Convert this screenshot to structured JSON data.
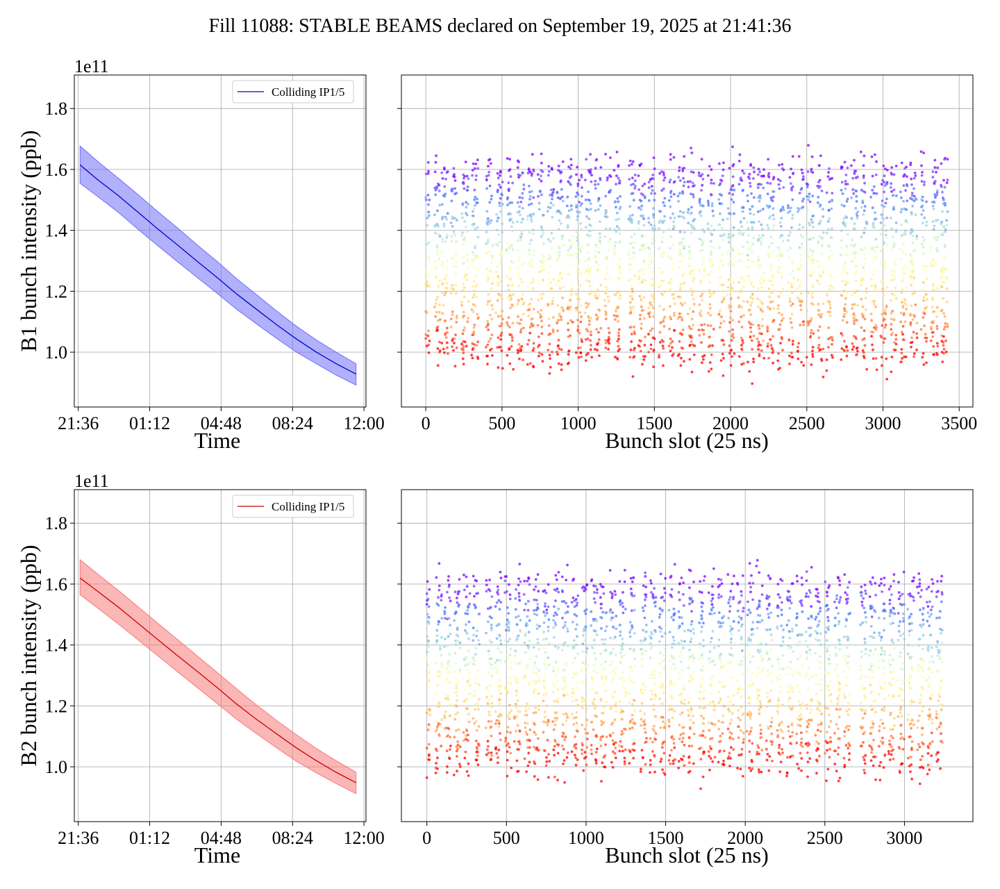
{
  "figure_title": "Fill 11088: STABLE BEAMS declared on September 19, 2025 at 21:41:36",
  "colors": {
    "b1_line": "#0000cc",
    "b1_band": "#6f6ff7",
    "b2_line": "#cc0000",
    "b2_band": "#f77a7a",
    "grid": "#b0b0b0",
    "colormap": "rainbow"
  },
  "chart_data": [
    {
      "id": "b1_time",
      "type": "line",
      "title": "",
      "xlabel": "Time",
      "ylabel": "B1 bunch intensity (ppb)",
      "offset_label": "1e11",
      "x_ticks": [
        "21:36",
        "01:12",
        "04:48",
        "08:24",
        "12:00"
      ],
      "xlim_hours": [
        -0.2,
        14.5
      ],
      "ylim": [
        0.82,
        1.91
      ],
      "y_ticks": [
        "1.0",
        "1.2",
        "1.4",
        "1.6",
        "1.8"
      ],
      "legend": {
        "entries": [
          "Colliding IP1/5"
        ],
        "placement": "top-right"
      },
      "grid": true,
      "series": [
        {
          "name": "Colliding IP1/5",
          "x_hours": [
            0.09,
            1,
            2,
            3,
            4,
            5,
            6,
            7,
            8,
            9,
            10,
            11,
            12,
            13,
            14.0
          ],
          "mean": [
            1.615,
            1.565,
            1.515,
            1.46,
            1.405,
            1.352,
            1.298,
            1.245,
            1.19,
            1.14,
            1.09,
            1.043,
            1.0,
            0.962,
            0.928
          ],
          "upper": [
            1.677,
            1.625,
            1.572,
            1.518,
            1.462,
            1.408,
            1.352,
            1.298,
            1.24,
            1.188,
            1.135,
            1.085,
            1.04,
            1.0,
            0.962
          ],
          "lower": [
            1.555,
            1.51,
            1.46,
            1.404,
            1.35,
            1.297,
            1.245,
            1.193,
            1.14,
            1.092,
            1.045,
            1.0,
            0.962,
            0.925,
            0.892
          ]
        }
      ]
    },
    {
      "id": "b1_slots",
      "type": "scatter",
      "title": "",
      "xlabel": "Bunch slot (25 ns)",
      "ylabel": "",
      "xlim": [
        -160,
        3590
      ],
      "ylim": [
        0.82,
        1.91
      ],
      "x_ticks": [
        0,
        500,
        1000,
        1500,
        2000,
        2500,
        3000,
        3500
      ],
      "grid": true,
      "color_by": "time (rainbow: early = violet, late = red)",
      "trains": [
        [
          0,
          25
        ],
        [
          58,
          95
        ],
        [
          105,
          145
        ],
        [
          165,
          205
        ],
        [
          235,
          280
        ],
        [
          300,
          345
        ],
        [
          395,
          440
        ],
        [
          460,
          505
        ],
        [
          530,
          575
        ],
        [
          600,
          645
        ],
        [
          665,
          710
        ],
        [
          735,
          775
        ],
        [
          800,
          840
        ],
        [
          860,
          905
        ],
        [
          925,
          965
        ],
        [
          985,
          1030
        ],
        [
          1045,
          1090
        ],
        [
          1110,
          1150
        ],
        [
          1175,
          1215
        ],
        [
          1235,
          1280
        ],
        [
          1330,
          1375
        ],
        [
          1395,
          1440
        ],
        [
          1460,
          1505
        ],
        [
          1530,
          1570
        ],
        [
          1595,
          1635
        ],
        [
          1655,
          1700
        ],
        [
          1720,
          1765
        ],
        [
          1790,
          1830
        ],
        [
          1850,
          1890
        ],
        [
          1920,
          1960
        ],
        [
          1980,
          2025
        ],
        [
          2050,
          2090
        ],
        [
          2110,
          2155
        ],
        [
          2175,
          2220
        ],
        [
          2240,
          2285
        ],
        [
          2310,
          2350
        ],
        [
          2375,
          2415
        ],
        [
          2440,
          2480
        ],
        [
          2500,
          2545
        ],
        [
          2570,
          2610
        ],
        [
          2630,
          2670
        ],
        [
          2725,
          2770
        ],
        [
          2790,
          2835
        ],
        [
          2855,
          2895
        ],
        [
          2920,
          2960
        ],
        [
          2985,
          3030
        ],
        [
          3050,
          3090
        ],
        [
          3115,
          3160
        ],
        [
          3180,
          3225
        ],
        [
          3250,
          3290
        ],
        [
          3315,
          3360
        ],
        [
          3380,
          3425
        ]
      ],
      "intensity_start": 1.6,
      "intensity_end": 0.99,
      "intensity_spread": 0.05
    },
    {
      "id": "b2_time",
      "type": "line",
      "title": "",
      "xlabel": "Time",
      "ylabel": "B2 bunch intensity (ppb)",
      "offset_label": "1e11",
      "x_ticks": [
        "21:36",
        "01:12",
        "04:48",
        "08:24",
        "12:00"
      ],
      "xlim_hours": [
        -0.2,
        14.5
      ],
      "ylim": [
        0.82,
        1.91
      ],
      "y_ticks": [
        "1.0",
        "1.2",
        "1.4",
        "1.6",
        "1.8"
      ],
      "legend": {
        "entries": [
          "Colliding IP1/5"
        ],
        "placement": "top-right"
      },
      "grid": true,
      "series": [
        {
          "name": "Colliding IP1/5",
          "x_hours": [
            0.09,
            1,
            2,
            3,
            4,
            5,
            6,
            7,
            8,
            9,
            10,
            11,
            12,
            13,
            14.0
          ],
          "mean": [
            1.62,
            1.575,
            1.525,
            1.472,
            1.418,
            1.365,
            1.313,
            1.26,
            1.205,
            1.155,
            1.108,
            1.062,
            1.02,
            0.982,
            0.948
          ],
          "upper": [
            1.68,
            1.632,
            1.58,
            1.526,
            1.472,
            1.418,
            1.364,
            1.31,
            1.255,
            1.202,
            1.152,
            1.105,
            1.06,
            1.02,
            0.982
          ],
          "lower": [
            1.565,
            1.52,
            1.47,
            1.418,
            1.365,
            1.312,
            1.26,
            1.208,
            1.155,
            1.108,
            1.062,
            1.018,
            0.98,
            0.945,
            0.912
          ]
        }
      ]
    },
    {
      "id": "b2_slots",
      "type": "scatter",
      "title": "",
      "xlabel": "Bunch slot (25 ns)",
      "ylabel": "",
      "xlim": [
        -160,
        3430
      ],
      "ylim": [
        0.82,
        1.91
      ],
      "x_ticks": [
        0,
        500,
        1000,
        1500,
        2000,
        2500,
        3000
      ],
      "grid": true,
      "color_by": "time (rainbow: early = violet, late = red)",
      "trains": [
        [
          0,
          20
        ],
        [
          55,
          95
        ],
        [
          110,
          150
        ],
        [
          170,
          210
        ],
        [
          230,
          270
        ],
        [
          290,
          330
        ],
        [
          370,
          410
        ],
        [
          430,
          470
        ],
        [
          490,
          530
        ],
        [
          550,
          590
        ],
        [
          610,
          650
        ],
        [
          670,
          710
        ],
        [
          730,
          770
        ],
        [
          790,
          830
        ],
        [
          850,
          890
        ],
        [
          910,
          950
        ],
        [
          970,
          1010
        ],
        [
          1030,
          1070
        ],
        [
          1090,
          1130
        ],
        [
          1150,
          1190
        ],
        [
          1210,
          1250
        ],
        [
          1270,
          1310
        ],
        [
          1340,
          1380
        ],
        [
          1400,
          1440
        ],
        [
          1460,
          1500
        ],
        [
          1520,
          1560
        ],
        [
          1580,
          1620
        ],
        [
          1640,
          1680
        ],
        [
          1710,
          1750
        ],
        [
          1770,
          1810
        ],
        [
          1830,
          1870
        ],
        [
          1890,
          1930
        ],
        [
          1950,
          1990
        ],
        [
          2010,
          2050
        ],
        [
          2070,
          2110
        ],
        [
          2130,
          2170
        ],
        [
          2200,
          2240
        ],
        [
          2260,
          2300
        ],
        [
          2320,
          2360
        ],
        [
          2380,
          2420
        ],
        [
          2440,
          2480
        ],
        [
          2500,
          2540
        ],
        [
          2560,
          2600
        ],
        [
          2620,
          2660
        ],
        [
          2720,
          2760
        ],
        [
          2780,
          2820
        ],
        [
          2840,
          2880
        ],
        [
          2900,
          2940
        ],
        [
          2960,
          3000
        ],
        [
          3020,
          3060
        ],
        [
          3080,
          3120
        ],
        [
          3140,
          3180
        ],
        [
          3200,
          3240
        ]
      ],
      "intensity_start": 1.6,
      "intensity_end": 1.01,
      "intensity_spread": 0.05
    }
  ]
}
